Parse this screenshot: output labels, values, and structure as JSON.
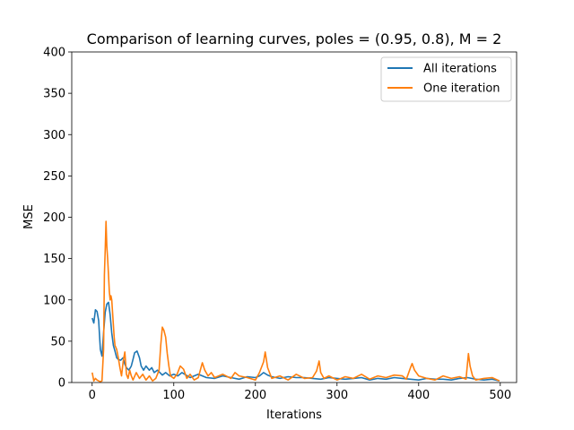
{
  "chart_data": {
    "type": "line",
    "title": "Comparison of learning curves, poles = (0.95, 0.8), M = 2",
    "xlabel": "Iterations",
    "ylabel": "MSE",
    "xlim": [
      -25,
      520
    ],
    "ylim": [
      0,
      400
    ],
    "xticks": [
      0,
      100,
      200,
      300,
      400,
      500
    ],
    "yticks": [
      0,
      50,
      100,
      150,
      200,
      250,
      300,
      350,
      400
    ],
    "grid": false,
    "legend_position": "upper-right",
    "series": [
      {
        "name": "All iterations",
        "color": "#1f77b4",
        "x": [
          0,
          2,
          4,
          6,
          8,
          10,
          12,
          14,
          16,
          18,
          20,
          22,
          24,
          26,
          28,
          30,
          32,
          35,
          38,
          40,
          42,
          45,
          48,
          50,
          52,
          55,
          58,
          60,
          63,
          66,
          70,
          73,
          76,
          80,
          83,
          86,
          90,
          95,
          100,
          105,
          110,
          115,
          120,
          125,
          130,
          140,
          150,
          160,
          170,
          180,
          190,
          200,
          205,
          210,
          215,
          220,
          230,
          240,
          250,
          260,
          270,
          280,
          290,
          300,
          310,
          320,
          330,
          340,
          350,
          360,
          370,
          380,
          390,
          400,
          410,
          420,
          430,
          440,
          450,
          460,
          470,
          480,
          490,
          499
        ],
        "y": [
          78,
          72,
          88,
          86,
          75,
          40,
          32,
          60,
          85,
          95,
          97,
          82,
          60,
          45,
          38,
          30,
          28,
          27,
          30,
          22,
          18,
          15,
          20,
          28,
          36,
          38,
          30,
          20,
          15,
          20,
          15,
          18,
          12,
          15,
          12,
          9,
          12,
          8,
          10,
          8,
          12,
          9,
          6,
          8,
          10,
          6,
          5,
          8,
          6,
          4,
          7,
          6,
          8,
          12,
          9,
          7,
          5,
          7,
          6,
          6,
          5,
          4,
          6,
          5,
          4,
          5,
          6,
          3,
          5,
          4,
          6,
          5,
          4,
          3,
          5,
          4,
          4,
          3,
          5,
          6,
          4,
          3,
          4,
          2
        ]
      },
      {
        "name": "One iteration",
        "color": "#ff7f0e",
        "x": [
          0,
          2,
          4,
          6,
          8,
          10,
          12,
          14,
          15,
          16,
          17,
          18,
          19,
          20,
          21,
          22,
          23,
          24,
          25,
          26,
          27,
          28,
          30,
          32,
          34,
          36,
          38,
          40,
          42,
          44,
          46,
          48,
          50,
          54,
          58,
          62,
          66,
          70,
          74,
          78,
          82,
          84,
          86,
          88,
          90,
          92,
          94,
          96,
          100,
          104,
          108,
          112,
          116,
          120,
          125,
          130,
          135,
          138,
          142,
          146,
          150,
          160,
          170,
          175,
          180,
          190,
          200,
          205,
          210,
          212,
          215,
          220,
          230,
          240,
          250,
          260,
          270,
          275,
          278,
          280,
          284,
          290,
          300,
          310,
          320,
          330,
          340,
          350,
          360,
          370,
          380,
          385,
          390,
          392,
          395,
          400,
          410,
          420,
          430,
          440,
          450,
          458,
          461,
          463,
          466,
          470,
          480,
          490,
          499
        ],
        "y": [
          12,
          2,
          5,
          3,
          2,
          1,
          2,
          40,
          130,
          160,
          195,
          165,
          150,
          130,
          110,
          100,
          105,
          100,
          85,
          70,
          55,
          45,
          40,
          30,
          18,
          8,
          25,
          37,
          10,
          5,
          15,
          8,
          3,
          12,
          5,
          10,
          3,
          8,
          2,
          5,
          15,
          45,
          67,
          63,
          55,
          35,
          20,
          8,
          5,
          10,
          20,
          16,
          5,
          10,
          3,
          6,
          24,
          15,
          8,
          12,
          6,
          10,
          5,
          12,
          8,
          6,
          3,
          12,
          25,
          37,
          18,
          5,
          8,
          3,
          10,
          5,
          6,
          14,
          26,
          12,
          5,
          8,
          3,
          7,
          5,
          10,
          4,
          8,
          6,
          9,
          8,
          4,
          18,
          23,
          15,
          8,
          5,
          3,
          8,
          5,
          7,
          4,
          35,
          20,
          8,
          3,
          5,
          6,
          2
        ]
      }
    ]
  }
}
